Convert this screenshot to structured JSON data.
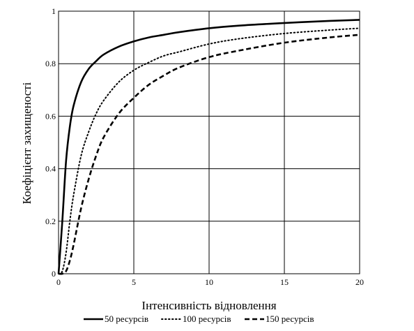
{
  "chart_data": {
    "type": "line",
    "xlabel": "Інтенсивність відновлення",
    "ylabel": "Коефіцієнт захищеності",
    "xlim": [
      0,
      20
    ],
    "ylim": [
      0,
      1
    ],
    "x_ticks": [
      "0",
      "5",
      "10",
      "15",
      "20"
    ],
    "y_ticks": [
      "0",
      "0.2",
      "0.4",
      "0.6",
      "0.8",
      "1"
    ],
    "grid": true,
    "legend_position": "bottom",
    "series": [
      {
        "name": "50 ресурсів",
        "style": "solid",
        "color": "#000000",
        "x": [
          0,
          0.25,
          0.5,
          0.75,
          1,
          1.5,
          2,
          2.5,
          3,
          4,
          5,
          6,
          7,
          8,
          10,
          12,
          15,
          18,
          20
        ],
        "y": [
          0,
          0.2,
          0.43,
          0.56,
          0.64,
          0.73,
          0.78,
          0.81,
          0.835,
          0.865,
          0.885,
          0.9,
          0.91,
          0.92,
          0.935,
          0.945,
          0.955,
          0.963,
          0.967
        ]
      },
      {
        "name": "100 ресурсів",
        "style": "dotted",
        "color": "#000000",
        "x": [
          0,
          0.25,
          0.5,
          0.75,
          1,
          1.5,
          2,
          2.5,
          3,
          4,
          5,
          6,
          7,
          8,
          10,
          12,
          15,
          18,
          20
        ],
        "y": [
          0,
          0.01,
          0.08,
          0.2,
          0.3,
          0.45,
          0.54,
          0.61,
          0.66,
          0.73,
          0.775,
          0.805,
          0.83,
          0.845,
          0.875,
          0.895,
          0.915,
          0.928,
          0.935
        ]
      },
      {
        "name": "150 ресурсів",
        "style": "dashed",
        "color": "#000000",
        "x": [
          0,
          0.25,
          0.5,
          0.75,
          1,
          1.5,
          2,
          2.5,
          3,
          4,
          5,
          6,
          7,
          8,
          10,
          12,
          15,
          18,
          20
        ],
        "y": [
          0,
          0.0,
          0.01,
          0.05,
          0.11,
          0.25,
          0.36,
          0.45,
          0.52,
          0.61,
          0.67,
          0.72,
          0.755,
          0.785,
          0.825,
          0.85,
          0.88,
          0.9,
          0.91
        ]
      }
    ]
  }
}
